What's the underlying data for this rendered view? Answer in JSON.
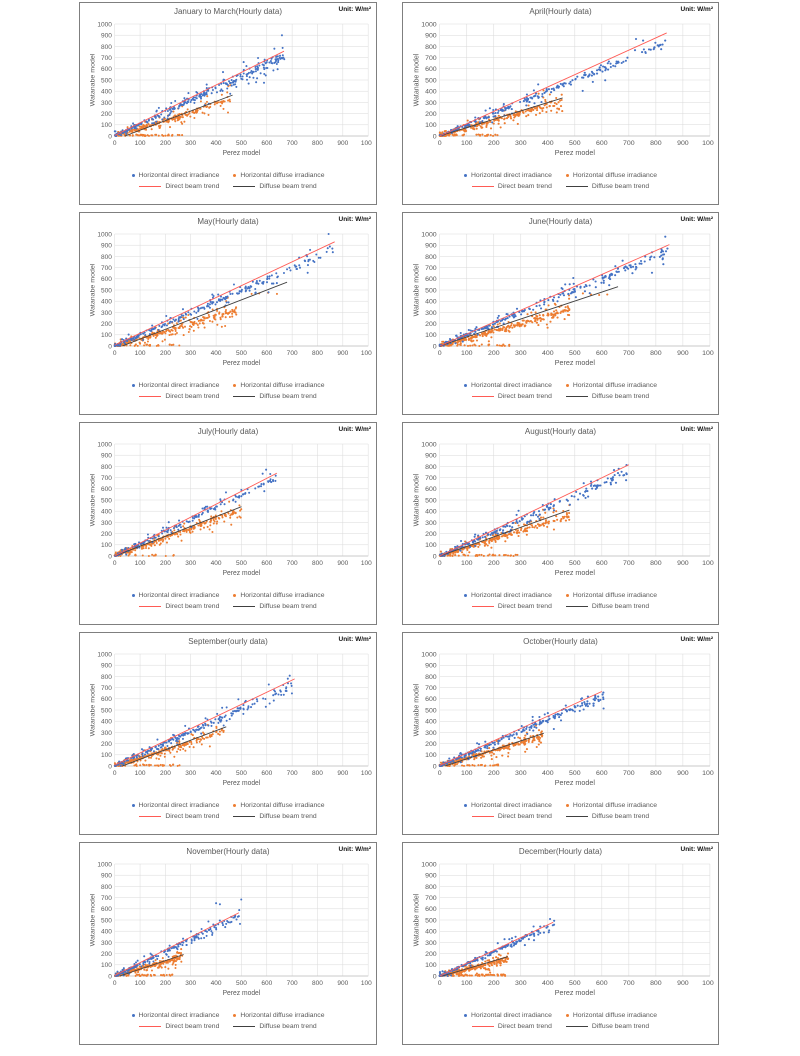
{
  "unit_label": "Unit: W/m²",
  "axis": {
    "x_label": "Perez model",
    "y_label": "Watanabe model",
    "min": 0,
    "max": 1000,
    "step": 100,
    "grid": true
  },
  "legend": {
    "direct_points": "Horizontal direct irradiance",
    "diffuse_points": "Horizontal diffuse irradiance",
    "direct_trend": "Direct beam trend",
    "diffuse_trend": "Diffuse beam trend"
  },
  "colors": {
    "direct": "#4472C4",
    "diffuse": "#ED7D31",
    "direct_trend": "#FF5B55",
    "diffuse_trend": "#404040",
    "grid": "#D9D9D9",
    "axis_line": "#BFBFBF",
    "text": "#595959",
    "panel_border": "#7F7F7F"
  },
  "chart_data": [
    {
      "type": "scatter",
      "title": "January to March(Hourly data)",
      "seed": 101,
      "xlim": [
        0,
        1000
      ],
      "ylim": [
        0,
        1000
      ],
      "direct": {
        "count": 300,
        "x_max": 670,
        "slope": 1.07,
        "noise": 60
      },
      "diffuse": {
        "count": 270,
        "x_max": 460,
        "slope": 0.7,
        "noise": 48,
        "floor_count": 45,
        "floor_x_max": 270
      },
      "trend_direct": {
        "x1": 0,
        "y1": 5,
        "x2": 668,
        "y2": 757
      },
      "trend_diffuse": {
        "x1": 40,
        "y1": 0,
        "x2": 465,
        "y2": 365
      }
    },
    {
      "type": "scatter",
      "title": "April(Hourly data)",
      "seed": 202,
      "xlim": [
        0,
        1000
      ],
      "ylim": [
        0,
        1000
      ],
      "direct": {
        "count": 230,
        "x_max": 840,
        "slope": 1.0,
        "noise": 55
      },
      "diffuse": {
        "count": 260,
        "x_max": 455,
        "slope": 0.7,
        "noise": 45,
        "floor_count": 30,
        "floor_x_max": 230
      },
      "trend_direct": {
        "x1": 0,
        "y1": 0,
        "x2": 840,
        "y2": 920
      },
      "trend_diffuse": {
        "x1": 0,
        "y1": 0,
        "x2": 455,
        "y2": 340
      }
    },
    {
      "type": "scatter",
      "title": "May(Hourly data)",
      "seed": 303,
      "xlim": [
        0,
        1000
      ],
      "ylim": [
        0,
        1000
      ],
      "direct": {
        "count": 240,
        "x_max": 870,
        "slope": 0.99,
        "noise": 55
      },
      "diffuse": {
        "count": 280,
        "x_max": 480,
        "slope": 0.66,
        "noise": 48,
        "floor_count": 35,
        "floor_x_max": 260,
        "extra": [
          [
            540,
            465
          ],
          [
            570,
            470
          ],
          [
            605,
            475
          ],
          [
            640,
            465
          ]
        ]
      },
      "trend_direct": {
        "x1": 0,
        "y1": 8,
        "x2": 868,
        "y2": 930
      },
      "trend_diffuse": {
        "x1": 30,
        "y1": 0,
        "x2": 680,
        "y2": 570
      }
    },
    {
      "type": "scatter",
      "title": "June(Hourly data)",
      "seed": 404,
      "xlim": [
        0,
        1000
      ],
      "ylim": [
        0,
        1000
      ],
      "direct": {
        "count": 250,
        "x_max": 850,
        "slope": 1.0,
        "noise": 50
      },
      "diffuse": {
        "count": 290,
        "x_max": 480,
        "slope": 0.67,
        "noise": 45,
        "floor_count": 30,
        "floor_x_max": 260,
        "extra": [
          [
            530,
            470
          ],
          [
            560,
            460
          ],
          [
            590,
            455
          ],
          [
            620,
            460
          ]
        ]
      },
      "trend_direct": {
        "x1": 0,
        "y1": 0,
        "x2": 850,
        "y2": 905
      },
      "trend_diffuse": {
        "x1": 0,
        "y1": 0,
        "x2": 660,
        "y2": 530
      }
    },
    {
      "type": "scatter",
      "title": "July(Hourly data)",
      "seed": 505,
      "xlim": [
        0,
        1000
      ],
      "ylim": [
        0,
        1000
      ],
      "direct": {
        "count": 170,
        "x_max": 640,
        "slope": 1.1,
        "noise": 45
      },
      "diffuse": {
        "count": 270,
        "x_max": 500,
        "slope": 0.82,
        "noise": 40,
        "floor_count": 15,
        "floor_x_max": 250
      },
      "trend_direct": {
        "x1": 0,
        "y1": 0,
        "x2": 640,
        "y2": 740
      },
      "trend_diffuse": {
        "x1": 0,
        "y1": 0,
        "x2": 500,
        "y2": 440
      }
    },
    {
      "type": "scatter",
      "title": "August(Hourly data)",
      "seed": 606,
      "xlim": [
        0,
        1000
      ],
      "ylim": [
        0,
        1000
      ],
      "direct": {
        "count": 210,
        "x_max": 700,
        "slope": 1.08,
        "noise": 55
      },
      "diffuse": {
        "count": 290,
        "x_max": 480,
        "slope": 0.76,
        "noise": 48,
        "floor_count": 35,
        "floor_x_max": 300
      },
      "trend_direct": {
        "x1": 0,
        "y1": 0,
        "x2": 700,
        "y2": 815
      },
      "trend_diffuse": {
        "x1": 0,
        "y1": 0,
        "x2": 480,
        "y2": 410
      }
    },
    {
      "type": "scatter",
      "title": "September(ourly data)",
      "seed": 707,
      "xlim": [
        0,
        1000
      ],
      "ylim": [
        0,
        1000
      ],
      "direct": {
        "count": 220,
        "x_max": 710,
        "slope": 1.02,
        "noise": 50
      },
      "diffuse": {
        "count": 270,
        "x_max": 430,
        "slope": 0.72,
        "noise": 45,
        "floor_count": 30,
        "floor_x_max": 260
      },
      "trend_direct": {
        "x1": 0,
        "y1": 8,
        "x2": 710,
        "y2": 778
      },
      "trend_diffuse": {
        "x1": 30,
        "y1": 0,
        "x2": 440,
        "y2": 350
      }
    },
    {
      "type": "scatter",
      "title": "October(Hourly data)",
      "seed": 808,
      "xlim": [
        0,
        1000
      ],
      "ylim": [
        0,
        1000
      ],
      "direct": {
        "count": 230,
        "x_max": 610,
        "slope": 1.04,
        "noise": 45
      },
      "diffuse": {
        "count": 290,
        "x_max": 380,
        "slope": 0.7,
        "noise": 38,
        "floor_count": 25,
        "floor_x_max": 220
      },
      "trend_direct": {
        "x1": 0,
        "y1": 5,
        "x2": 600,
        "y2": 665
      },
      "trend_diffuse": {
        "x1": 20,
        "y1": 0,
        "x2": 385,
        "y2": 292
      }
    },
    {
      "type": "scatter",
      "title": "November(Hourly data)",
      "seed": 909,
      "xlim": [
        0,
        1000
      ],
      "ylim": [
        0,
        1000
      ],
      "direct": {
        "count": 190,
        "x_max": 500,
        "slope": 1.1,
        "noise": 45,
        "extra": [
          [
            400,
            650
          ],
          [
            415,
            640
          ]
        ]
      },
      "diffuse": {
        "count": 250,
        "x_max": 270,
        "slope": 0.64,
        "noise": 32,
        "floor_count": 35,
        "floor_x_max": 230
      },
      "trend_direct": {
        "x1": 0,
        "y1": 5,
        "x2": 490,
        "y2": 565
      },
      "trend_diffuse": {
        "x1": 20,
        "y1": 0,
        "x2": 272,
        "y2": 192
      }
    },
    {
      "type": "scatter",
      "title": "December(Hourly data)",
      "seed": 111,
      "xlim": [
        0,
        1000
      ],
      "ylim": [
        0,
        1000
      ],
      "direct": {
        "count": 180,
        "x_max": 430,
        "slope": 1.09,
        "noise": 40
      },
      "diffuse": {
        "count": 280,
        "x_max": 255,
        "slope": 0.6,
        "noise": 32,
        "floor_count": 55,
        "floor_x_max": 250
      },
      "trend_direct": {
        "x1": 0,
        "y1": 0,
        "x2": 420,
        "y2": 480
      },
      "trend_diffuse": {
        "x1": 10,
        "y1": 0,
        "x2": 252,
        "y2": 172
      }
    }
  ]
}
